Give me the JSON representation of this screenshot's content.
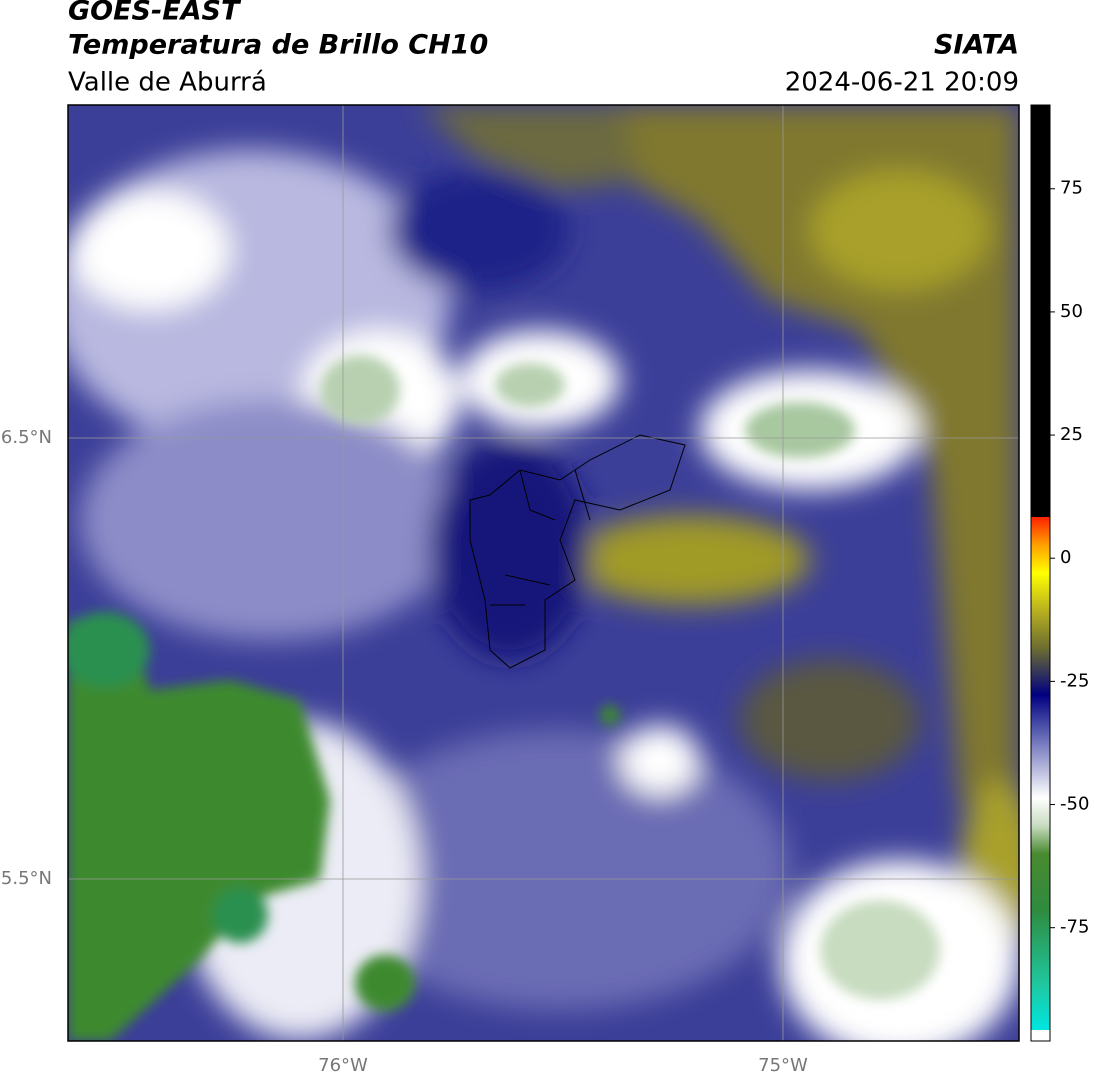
{
  "header": {
    "title": "GOES-EAST",
    "subtitle": "Temperatura de Brillo CH10",
    "region": "Valle de Aburrá",
    "agency": "SIATA",
    "datetime": "2024-06-21 20:09"
  },
  "map": {
    "lat_labels": [
      "6.5°N",
      "5.5°N"
    ],
    "lon_labels": [
      "76°W",
      "75°W"
    ]
  },
  "colorbar": {
    "range": [
      -98,
      92
    ],
    "ticks": [
      75,
      50,
      25,
      0,
      -25,
      -50,
      -75
    ]
  }
}
